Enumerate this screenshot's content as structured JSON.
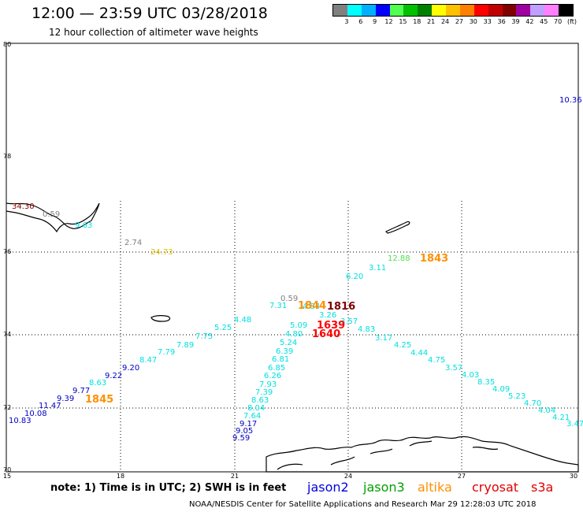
{
  "header": {
    "title": "12:00 — 23:59 UTC 03/28/2018",
    "subtitle": "12 hour collection of altimeter wave heights"
  },
  "legend": {
    "colors": [
      "#808080",
      "#00ffff",
      "#00b0ff",
      "#0000ff",
      "#50ff50",
      "#00c000",
      "#008000",
      "#ffff00",
      "#ffc000",
      "#ff8000",
      "#ff0000",
      "#c00000",
      "#800000",
      "#a000a0",
      "#c0a0ff",
      "#ff80ff",
      "#000000"
    ],
    "labels": [
      "3",
      "6",
      "9",
      "12",
      "15",
      "18",
      "21",
      "24",
      "27",
      "30",
      "33",
      "36",
      "39",
      "42",
      "45",
      "70",
      "(ft)"
    ]
  },
  "map": {
    "lat_labels": [
      "80",
      "78",
      "76",
      "74",
      "72",
      "70"
    ],
    "lon_labels": [
      "15",
      "18",
      "21",
      "24",
      "27",
      "30"
    ],
    "swh_colors": {
      "c_gray": "#808080",
      "c_cyan": "#00e0e0",
      "c_blue": "#0000c0",
      "c_green": "#50e050",
      "c_orange": "#ff9000",
      "c_yellow": "#e0c000",
      "c_red": "#ff0000",
      "c_darkred": "#800000"
    },
    "observations": [
      {
        "text": "10.36",
        "color": "c_blue"
      },
      {
        "text": "34.30",
        "color": "c_darkred"
      },
      {
        "text": "0.59",
        "color": "c_gray"
      },
      {
        "text": "9.63",
        "color": "c_cyan"
      },
      {
        "text": "2.74",
        "color": "c_gray"
      },
      {
        "text": "24.73",
        "color": "c_yellow"
      },
      {
        "text": "12.88",
        "color": "c_green"
      },
      {
        "text": "3.11",
        "color": "c_cyan"
      },
      {
        "text": "6.20",
        "color": "c_cyan"
      },
      {
        "text": "0.59",
        "color": "c_gray"
      },
      {
        "text": "7.31",
        "color": "c_cyan"
      },
      {
        "text": "4.84",
        "color": "c_cyan"
      },
      {
        "text": "3.26",
        "color": "c_cyan"
      },
      {
        "text": "5.09",
        "color": "c_cyan"
      },
      {
        "text": "3.57",
        "color": "c_cyan"
      },
      {
        "text": "4.80",
        "color": "c_cyan"
      },
      {
        "text": "4.83",
        "color": "c_cyan"
      },
      {
        "text": "3.17",
        "color": "c_cyan"
      },
      {
        "text": "4.25",
        "color": "c_cyan"
      },
      {
        "text": "4.44",
        "color": "c_cyan"
      },
      {
        "text": "4.75",
        "color": "c_cyan"
      },
      {
        "text": "3.57",
        "color": "c_cyan"
      },
      {
        "text": "4.03",
        "color": "c_cyan"
      },
      {
        "text": "8.35",
        "color": "c_cyan"
      },
      {
        "text": "4.09",
        "color": "c_cyan"
      },
      {
        "text": "5.23",
        "color": "c_cyan"
      },
      {
        "text": "4.70",
        "color": "c_cyan"
      },
      {
        "text": "4.04",
        "color": "c_cyan"
      },
      {
        "text": "4.21",
        "color": "c_cyan"
      },
      {
        "text": "3.47",
        "color": "c_cyan"
      },
      {
        "text": "4.48",
        "color": "c_cyan"
      },
      {
        "text": "5.25",
        "color": "c_cyan"
      },
      {
        "text": "7.75",
        "color": "c_cyan"
      },
      {
        "text": "7.89",
        "color": "c_cyan"
      },
      {
        "text": "7.79",
        "color": "c_cyan"
      },
      {
        "text": "8.47",
        "color": "c_cyan"
      },
      {
        "text": "9.20",
        "color": "c_blue"
      },
      {
        "text": "9.22",
        "color": "c_blue"
      },
      {
        "text": "8.63",
        "color": "c_cyan"
      },
      {
        "text": "9.77",
        "color": "c_blue"
      },
      {
        "text": "9.39",
        "color": "c_blue"
      },
      {
        "text": "11.47",
        "color": "c_blue"
      },
      {
        "text": "10.08",
        "color": "c_blue"
      },
      {
        "text": "10.83",
        "color": "c_blue"
      },
      {
        "text": "5.24",
        "color": "c_cyan"
      },
      {
        "text": "6.39",
        "color": "c_cyan"
      },
      {
        "text": "6.81",
        "color": "c_cyan"
      },
      {
        "text": "6.85",
        "color": "c_cyan"
      },
      {
        "text": "6.26",
        "color": "c_cyan"
      },
      {
        "text": "7.93",
        "color": "c_cyan"
      },
      {
        "text": "7.39",
        "color": "c_cyan"
      },
      {
        "text": "8.63",
        "color": "c_cyan"
      },
      {
        "text": "8.04",
        "color": "c_cyan"
      },
      {
        "text": "7.64",
        "color": "c_cyan"
      },
      {
        "text": "9.17",
        "color": "c_blue"
      },
      {
        "text": "9.05",
        "color": "c_blue"
      },
      {
        "text": "9.59",
        "color": "c_blue"
      }
    ],
    "pass_times": [
      {
        "text": "1843",
        "color": "c_orange"
      },
      {
        "text": "1844",
        "color": "c_orange"
      },
      {
        "text": "1816",
        "color": "c_darkred"
      },
      {
        "text": "1639",
        "color": "c_red"
      },
      {
        "text": "1640",
        "color": "c_red"
      },
      {
        "text": "1845",
        "color": "c_orange"
      }
    ]
  },
  "footer": {
    "note": "note:  1) Time is in UTC;  2) SWH is in feet",
    "satellites": [
      {
        "name": "jason2",
        "color": "#0000e0"
      },
      {
        "name": "jason3",
        "color": "#00a000"
      },
      {
        "name": "altika",
        "color": "#ff9000"
      },
      {
        "name": "cryosat",
        "color": "#e00000"
      },
      {
        "name": "s3a",
        "color": "#e00000"
      }
    ],
    "credit": "NOAA/NESDIS Center for Satellite Applications and Research    Mar 29 12:28:03 UTC 2018"
  }
}
